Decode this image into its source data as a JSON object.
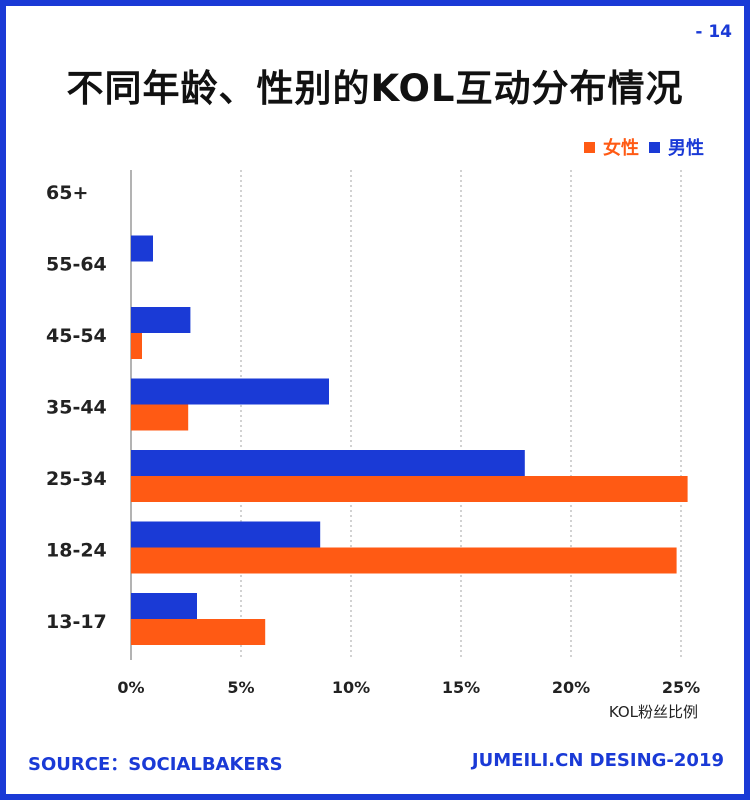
{
  "page_number": "- 14",
  "footer": {
    "source": "SOURCE：SOCIALBAKERS",
    "credit": "JUMEILI.CN DESING-2019"
  },
  "colors": {
    "female": "#ff5a14",
    "male": "#1a3ad6",
    "grid": "#b5b5b5",
    "frame": "#1a3ad6"
  },
  "chart_data": {
    "type": "bar",
    "orientation": "horizontal",
    "title": "不同年龄、性别的KOL互动分布情况",
    "xlabel": "KOL粉丝比例",
    "ylabel": "",
    "categories": [
      "65+",
      "55-64",
      "45-54",
      "35-44",
      "25-34",
      "18-24",
      "13-17"
    ],
    "series": [
      {
        "name": "男性",
        "values": [
          0,
          1.0,
          2.7,
          9.0,
          17.9,
          8.6,
          3.0
        ]
      },
      {
        "name": "女性",
        "values": [
          0,
          0,
          0.5,
          2.6,
          25.3,
          24.8,
          6.1
        ]
      }
    ],
    "legend_order": [
      "女性",
      "男性"
    ],
    "xlim": [
      0,
      25
    ],
    "xticks": [
      "0%",
      "5%",
      "10%",
      "15%",
      "20%",
      "25%"
    ],
    "grid": true,
    "legend_position": "top-right"
  }
}
